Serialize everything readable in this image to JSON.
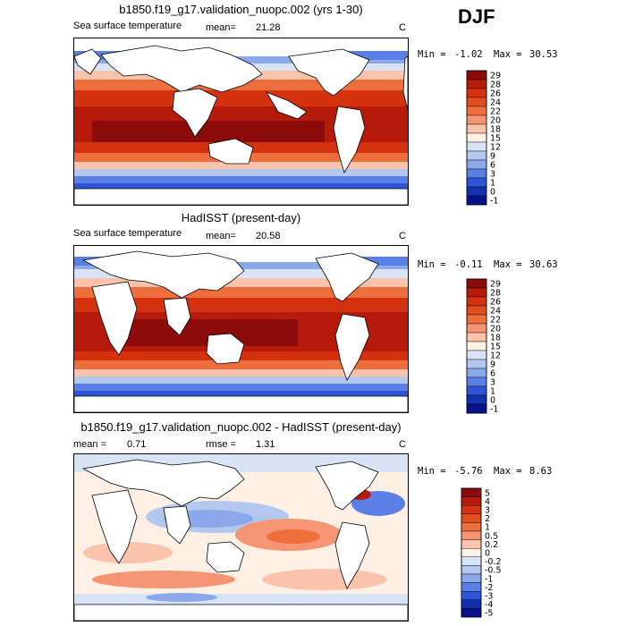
{
  "season": "DJF",
  "panels": [
    {
      "title": "b1850.f19_g17.validation_nuopc.002 (yrs 1-30)",
      "variable": "Sea surface temperature",
      "stat_label": "mean=",
      "stat_value": "21.28",
      "units": "C",
      "min_label": "Min =",
      "min_value": "-1.02",
      "max_label": "Max =",
      "max_value": "30.53"
    },
    {
      "title": "HadISST (present-day)",
      "variable": "Sea surface temperature",
      "stat_label": "mean=",
      "stat_value": "20.58",
      "units": "C",
      "min_label": "Min =",
      "min_value": "-0.11",
      "max_label": "Max =",
      "max_value": "30.63"
    },
    {
      "title": "b1850.f19_g17.validation_nuopc.002 - HadISST (present-day)",
      "mean_label": "mean =",
      "mean_value": "0.71",
      "rmse_label": "rmse =",
      "rmse_value": "1.31",
      "units": "C",
      "min_label": "Min =",
      "min_value": "-5.76",
      "max_label": "Max =",
      "max_value": "8.63"
    }
  ],
  "chart_data": [
    {
      "type": "heatmap",
      "title": "b1850.f19_g17.validation_nuopc.002 (yrs 1-30)",
      "subtitle": "Sea surface temperature",
      "mean": 21.28,
      "units": "C",
      "min": -1.02,
      "max": 30.53,
      "colorbar": {
        "levels": [
          "29",
          "28",
          "26",
          "24",
          "22",
          "20",
          "18",
          "15",
          "12",
          "9",
          "6",
          "3",
          "1",
          "0",
          "-1"
        ],
        "colors": [
          "#8b0a0a",
          "#b51a0a",
          "#d4320f",
          "#e24d1e",
          "#ee6e3c",
          "#f59574",
          "#fbc3ab",
          "#fff0e6",
          "#d8e4f6",
          "#b4c8ef",
          "#8aa8ea",
          "#5a80e6",
          "#2f55d6",
          "#1230b0",
          "#06118a"
        ]
      }
    },
    {
      "type": "heatmap",
      "title": "HadISST (present-day)",
      "subtitle": "Sea surface temperature",
      "mean": 20.58,
      "units": "C",
      "min": -0.11,
      "max": 30.63,
      "colorbar": {
        "levels": [
          "29",
          "28",
          "26",
          "24",
          "22",
          "20",
          "18",
          "15",
          "12",
          "9",
          "6",
          "3",
          "1",
          "0",
          "-1"
        ],
        "colors": [
          "#8b0a0a",
          "#b51a0a",
          "#d4320f",
          "#e24d1e",
          "#ee6e3c",
          "#f59574",
          "#fbc3ab",
          "#fff0e6",
          "#d8e4f6",
          "#b4c8ef",
          "#8aa8ea",
          "#5a80e6",
          "#2f55d6",
          "#1230b0",
          "#06118a"
        ]
      }
    },
    {
      "type": "heatmap",
      "title": "b1850.f19_g17.validation_nuopc.002 - HadISST (present-day)",
      "mean": 0.71,
      "rmse": 1.31,
      "units": "C",
      "min": -5.76,
      "max": 8.63,
      "colorbar": {
        "levels": [
          "5",
          "4",
          "3",
          "2",
          "1",
          "0.5",
          "0.2",
          "0",
          "-0.2",
          "-0.5",
          "-1",
          "-2",
          "-3",
          "-4",
          "-5"
        ],
        "colors": [
          "#8b0a0a",
          "#b51a0a",
          "#d4320f",
          "#e24d1e",
          "#ee6e3c",
          "#f59574",
          "#fbc3ab",
          "#fff0e6",
          "#d8e4f6",
          "#b4c8ef",
          "#8aa8ea",
          "#5a80e6",
          "#2f55d6",
          "#1230b0",
          "#06118a"
        ]
      }
    }
  ]
}
